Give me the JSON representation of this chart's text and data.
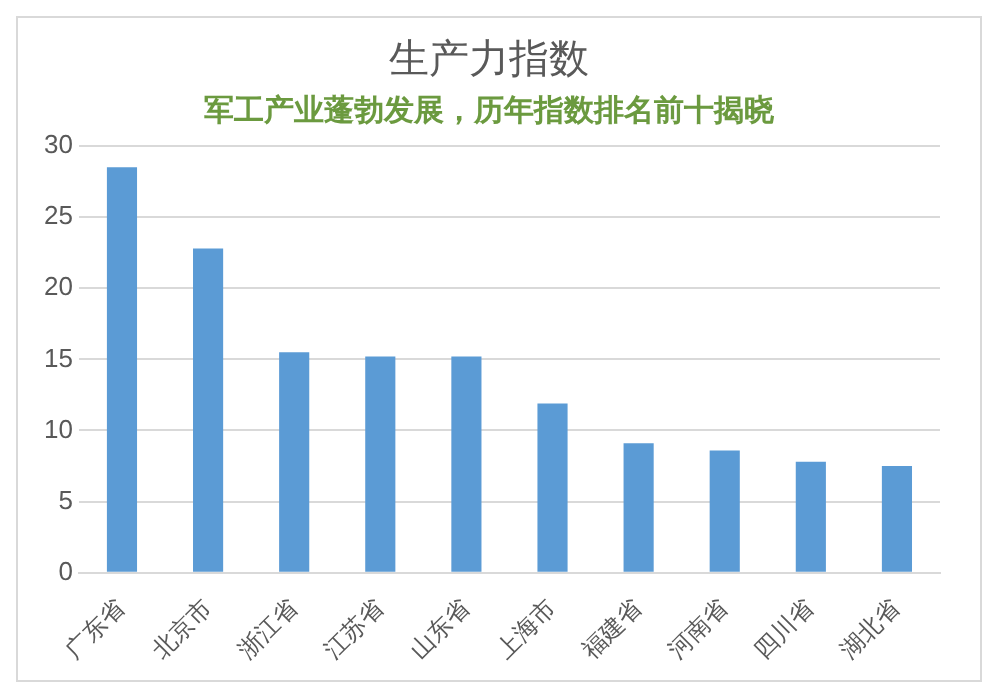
{
  "chart_data": {
    "type": "bar",
    "title": "生产力指数",
    "subtitle": "军工产业蓬勃发展，历年指数排名前十揭晓",
    "categories": [
      "广东省",
      "北京市",
      "浙江省",
      "江苏省",
      "山东省",
      "上海市",
      "福建省",
      "河南省",
      "四川省",
      "湖北省"
    ],
    "values": [
      28.5,
      22.8,
      15.5,
      15.2,
      15.2,
      11.9,
      9.1,
      8.6,
      7.8,
      7.5
    ],
    "color": "#5b9bd5",
    "ylim": [
      0,
      30
    ],
    "yticks": [
      0,
      5,
      10,
      15,
      20,
      25,
      30
    ],
    "grid": "y",
    "legend": false
  }
}
